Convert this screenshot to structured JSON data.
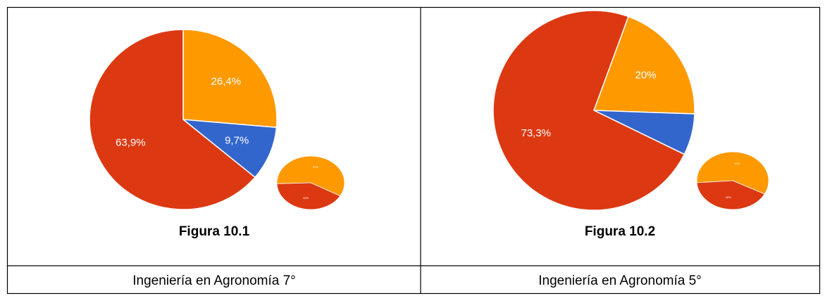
{
  "figures": [
    {
      "chart_data": {
        "type": "pie",
        "categories": [
          null,
          null,
          null
        ],
        "values": [
          26.4,
          9.7,
          63.9
        ],
        "value_labels": [
          "26,4%",
          "9,7%",
          "63,9%"
        ],
        "colors": [
          "#ff9900",
          "#3366cc",
          "#dc3912"
        ]
      },
      "legend_chart": {
        "type": "pie",
        "categories": [
          null,
          null
        ],
        "values": [
          57,
          40
        ],
        "value_labels": [
          "57%",
          "40%"
        ],
        "colors": [
          "#ff9900",
          "#dc3912"
        ]
      },
      "caption": "Figura 10.1",
      "program": "Ingeniería en Agronomía 7°"
    },
    {
      "chart_data": {
        "type": "pie",
        "categories": [
          null,
          null,
          null
        ],
        "values": [
          20,
          6.7,
          73.3
        ],
        "value_labels": [
          "20%",
          null,
          "73,3%"
        ],
        "colors": [
          "#ff9900",
          "#3366cc",
          "#dc3912"
        ]
      },
      "legend_chart": {
        "type": "pie",
        "categories": [
          null,
          null
        ],
        "values": [
          57,
          40
        ],
        "value_labels": [
          "57%",
          "40%"
        ],
        "colors": [
          "#ff9900",
          "#dc3912"
        ]
      },
      "caption": "Figura 10.2",
      "program": "Ingeniería en Agronomía 5°"
    }
  ]
}
